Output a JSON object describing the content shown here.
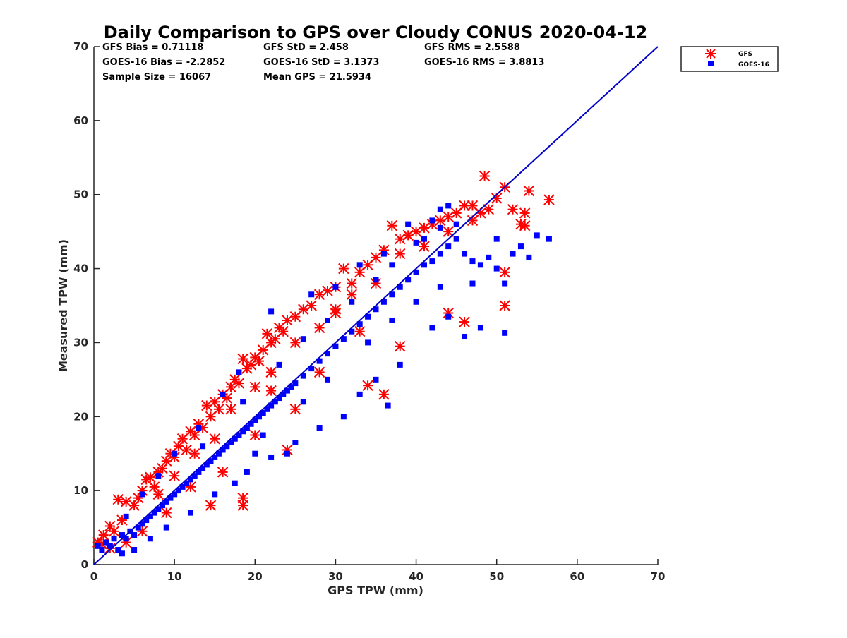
{
  "chart_data": {
    "type": "scatter",
    "title": "Daily Comparison to GPS over Cloudy CONUS 2020-04-12",
    "xlabel": "GPS TPW (mm)",
    "ylabel": "Measured TPW (mm)",
    "xlim": [
      0,
      70
    ],
    "ylim": [
      0,
      70
    ],
    "xticks": [
      0,
      10,
      20,
      30,
      40,
      50,
      60,
      70
    ],
    "yticks": [
      0,
      10,
      20,
      30,
      40,
      50,
      60,
      70
    ],
    "grid": false,
    "legend_position": "outside-top-right",
    "stats": [
      "GFS Bias = 0.71118",
      "GFS StD = 2.458",
      "GFS RMS = 2.5588",
      "GOES-16 Bias = -2.2852",
      "GOES-16 StD = 3.1373",
      "GOES-16 RMS = 3.8813",
      "Sample Size = 16067",
      "Mean GPS = 21.5934"
    ],
    "reference_line": {
      "color": "#0000cc",
      "points": [
        [
          0,
          0
        ],
        [
          70,
          70
        ]
      ]
    },
    "series": [
      {
        "name": "GFS",
        "marker": "asterisk",
        "color": "#ff0000",
        "points": [
          [
            0.5,
            3.0
          ],
          [
            1.2,
            4.0
          ],
          [
            2.0,
            5.2
          ],
          [
            2.5,
            4.5
          ],
          [
            3.0,
            8.8
          ],
          [
            3.5,
            6.0
          ],
          [
            4.0,
            8.5
          ],
          [
            5.0,
            8.0
          ],
          [
            5.5,
            9.0
          ],
          [
            6.0,
            10.0
          ],
          [
            6.5,
            11.5
          ],
          [
            7.0,
            11.8
          ],
          [
            7.5,
            10.5
          ],
          [
            8.0,
            12.5
          ],
          [
            8.5,
            13.0
          ],
          [
            9.0,
            14.0
          ],
          [
            9.5,
            15.0
          ],
          [
            10.0,
            14.5
          ],
          [
            10.5,
            16.0
          ],
          [
            11.0,
            17.0
          ],
          [
            11.5,
            15.5
          ],
          [
            12.0,
            18.0
          ],
          [
            12.5,
            17.5
          ],
          [
            13.0,
            19.0
          ],
          [
            13.5,
            18.5
          ],
          [
            14.0,
            21.5
          ],
          [
            14.5,
            20.0
          ],
          [
            15.0,
            22.0
          ],
          [
            15.5,
            21.0
          ],
          [
            16.0,
            23.0
          ],
          [
            16.5,
            22.5
          ],
          [
            17.0,
            24.0
          ],
          [
            17.5,
            25.0
          ],
          [
            18.0,
            24.5
          ],
          [
            18.5,
            27.8
          ],
          [
            19.0,
            26.5
          ],
          [
            19.5,
            27.0
          ],
          [
            20.0,
            28.0
          ],
          [
            20.5,
            27.5
          ],
          [
            21.0,
            29.0
          ],
          [
            21.5,
            31.2
          ],
          [
            22.0,
            30.0
          ],
          [
            22.5,
            30.5
          ],
          [
            23.0,
            32.0
          ],
          [
            23.5,
            31.5
          ],
          [
            24.0,
            33.0
          ],
          [
            25.0,
            33.5
          ],
          [
            26.0,
            34.5
          ],
          [
            27.0,
            35.0
          ],
          [
            28.0,
            36.5
          ],
          [
            29.0,
            37.0
          ],
          [
            30.0,
            37.5
          ],
          [
            31.0,
            40.0
          ],
          [
            32.0,
            38.0
          ],
          [
            33.0,
            39.5
          ],
          [
            34.0,
            40.5
          ],
          [
            35.0,
            41.5
          ],
          [
            36.0,
            42.5
          ],
          [
            37.0,
            45.8
          ],
          [
            38.0,
            44.0
          ],
          [
            39.0,
            44.5
          ],
          [
            40.0,
            45.0
          ],
          [
            41.0,
            45.5
          ],
          [
            42.0,
            46.0
          ],
          [
            43.0,
            46.5
          ],
          [
            44.0,
            47.0
          ],
          [
            45.0,
            47.5
          ],
          [
            46.0,
            48.5
          ],
          [
            47.0,
            46.5
          ],
          [
            48.0,
            47.5
          ],
          [
            48.5,
            52.5
          ],
          [
            49.0,
            48.0
          ],
          [
            50.0,
            49.5
          ],
          [
            51.0,
            51.0
          ],
          [
            52.0,
            48.0
          ],
          [
            53.0,
            46.0
          ],
          [
            53.5,
            47.5
          ],
          [
            54.0,
            50.5
          ],
          [
            56.5,
            49.3
          ],
          [
            53.5,
            45.8
          ],
          [
            51.0,
            39.5
          ],
          [
            51.0,
            35.0
          ],
          [
            46.0,
            32.8
          ],
          [
            44.0,
            34.0
          ],
          [
            38.0,
            29.5
          ],
          [
            36.0,
            23.0
          ],
          [
            34.0,
            24.2
          ],
          [
            33.0,
            31.5
          ],
          [
            30.0,
            34.0
          ],
          [
            28.0,
            26.0
          ],
          [
            25.0,
            21.0
          ],
          [
            24.0,
            15.5
          ],
          [
            22.0,
            23.5
          ],
          [
            20.0,
            17.5
          ],
          [
            18.5,
            8.0
          ],
          [
            18.5,
            9.0
          ],
          [
            14.5,
            8.0
          ],
          [
            16.0,
            12.5
          ],
          [
            12.0,
            10.5
          ],
          [
            9.0,
            7.0
          ],
          [
            6.0,
            4.5
          ],
          [
            4.0,
            3.0
          ],
          [
            2.0,
            2.2
          ],
          [
            1.0,
            2.8
          ],
          [
            25.0,
            30.0
          ],
          [
            28.0,
            32.0
          ],
          [
            30.0,
            34.5
          ],
          [
            20.0,
            24.0
          ],
          [
            22.0,
            26.0
          ],
          [
            17.0,
            21.0
          ],
          [
            15.0,
            17.0
          ],
          [
            12.5,
            15.0
          ],
          [
            10.0,
            12.0
          ],
          [
            8.0,
            9.5
          ],
          [
            32.0,
            36.5
          ],
          [
            35.0,
            38.0
          ],
          [
            38.0,
            42.0
          ],
          [
            41.0,
            43.0
          ],
          [
            44.0,
            45.0
          ],
          [
            47.0,
            48.5
          ]
        ]
      },
      {
        "name": "GOES-16",
        "marker": "square",
        "color": "#0000ff",
        "points": [
          [
            0.5,
            2.5
          ],
          [
            1.0,
            2.0
          ],
          [
            1.5,
            3.0
          ],
          [
            2.0,
            2.5
          ],
          [
            2.5,
            3.5
          ],
          [
            3.0,
            2.0
          ],
          [
            3.5,
            4.0
          ],
          [
            4.0,
            3.5
          ],
          [
            4.5,
            4.5
          ],
          [
            5.0,
            4.0
          ],
          [
            5.5,
            5.0
          ],
          [
            6.0,
            5.5
          ],
          [
            6.5,
            6.0
          ],
          [
            7.0,
            6.5
          ],
          [
            7.5,
            7.0
          ],
          [
            8.0,
            7.5
          ],
          [
            8.5,
            8.0
          ],
          [
            9.0,
            8.5
          ],
          [
            9.5,
            9.0
          ],
          [
            10.0,
            9.5
          ],
          [
            10.5,
            10.0
          ],
          [
            11.0,
            10.5
          ],
          [
            11.5,
            11.0
          ],
          [
            12.0,
            11.5
          ],
          [
            12.5,
            12.0
          ],
          [
            13.0,
            12.5
          ],
          [
            13.5,
            13.0
          ],
          [
            14.0,
            13.5
          ],
          [
            14.5,
            14.0
          ],
          [
            15.0,
            14.5
          ],
          [
            15.5,
            15.0
          ],
          [
            16.0,
            15.5
          ],
          [
            16.5,
            16.0
          ],
          [
            17.0,
            16.5
          ],
          [
            17.5,
            17.0
          ],
          [
            18.0,
            17.5
          ],
          [
            18.5,
            18.0
          ],
          [
            19.0,
            18.5
          ],
          [
            19.5,
            19.0
          ],
          [
            20.0,
            19.5
          ],
          [
            20.5,
            20.0
          ],
          [
            21.0,
            20.5
          ],
          [
            21.5,
            21.0
          ],
          [
            22.0,
            21.5
          ],
          [
            22.5,
            22.0
          ],
          [
            23.0,
            22.5
          ],
          [
            23.5,
            23.0
          ],
          [
            24.0,
            23.5
          ],
          [
            24.5,
            24.0
          ],
          [
            25.0,
            24.5
          ],
          [
            26.0,
            25.5
          ],
          [
            27.0,
            26.5
          ],
          [
            28.0,
            27.5
          ],
          [
            29.0,
            28.5
          ],
          [
            30.0,
            29.5
          ],
          [
            31.0,
            30.5
          ],
          [
            32.0,
            31.5
          ],
          [
            33.0,
            32.5
          ],
          [
            34.0,
            33.5
          ],
          [
            35.0,
            34.5
          ],
          [
            36.0,
            35.5
          ],
          [
            37.0,
            36.5
          ],
          [
            38.0,
            37.5
          ],
          [
            39.0,
            38.5
          ],
          [
            40.0,
            39.5
          ],
          [
            41.0,
            40.5
          ],
          [
            42.0,
            41.0
          ],
          [
            43.0,
            42.0
          ],
          [
            44.0,
            43.0
          ],
          [
            45.0,
            44.0
          ],
          [
            46.0,
            42.0
          ],
          [
            47.0,
            41.0
          ],
          [
            48.0,
            40.5
          ],
          [
            49.0,
            41.5
          ],
          [
            50.0,
            40.0
          ],
          [
            51.0,
            38.0
          ],
          [
            52.0,
            42.0
          ],
          [
            53.0,
            43.0
          ],
          [
            54.0,
            41.5
          ],
          [
            55.0,
            44.5
          ],
          [
            56.5,
            44.0
          ],
          [
            42.0,
            46.5
          ],
          [
            43.0,
            48.0
          ],
          [
            44.0,
            48.5
          ],
          [
            41.0,
            44.0
          ],
          [
            39.0,
            46.0
          ],
          [
            22.0,
            34.2
          ],
          [
            27.0,
            36.5
          ],
          [
            30.0,
            37.5
          ],
          [
            33.0,
            40.5
          ],
          [
            36.0,
            42.0
          ],
          [
            18.0,
            26.0
          ],
          [
            16.0,
            23.0
          ],
          [
            13.0,
            18.5
          ],
          [
            10.0,
            15.0
          ],
          [
            8.0,
            12.0
          ],
          [
            6.0,
            9.5
          ],
          [
            4.0,
            6.5
          ],
          [
            46.0,
            30.8
          ],
          [
            48.0,
            32.0
          ],
          [
            51.0,
            31.3
          ],
          [
            44.0,
            33.5
          ],
          [
            42.0,
            32.0
          ],
          [
            38.0,
            27.0
          ],
          [
            36.5,
            21.5
          ],
          [
            35.0,
            25.0
          ],
          [
            33.0,
            23.0
          ],
          [
            31.0,
            20.0
          ],
          [
            28.0,
            18.5
          ],
          [
            25.0,
            16.5
          ],
          [
            22.0,
            14.5
          ],
          [
            24.0,
            15.0
          ],
          [
            19.0,
            12.5
          ],
          [
            17.5,
            11.0
          ],
          [
            15.0,
            9.5
          ],
          [
            12.0,
            7.0
          ],
          [
            9.0,
            5.0
          ],
          [
            7.0,
            3.5
          ],
          [
            5.0,
            2.0
          ],
          [
            3.5,
            1.5
          ],
          [
            13.5,
            16.0
          ],
          [
            18.5,
            22.0
          ],
          [
            23.0,
            27.0
          ],
          [
            26.0,
            30.5
          ],
          [
            29.0,
            33.0
          ],
          [
            32.0,
            35.5
          ],
          [
            35.0,
            38.5
          ],
          [
            37.0,
            40.5
          ],
          [
            40.0,
            43.5
          ],
          [
            43.0,
            45.5
          ],
          [
            45.0,
            46.0
          ],
          [
            20.0,
            15.0
          ],
          [
            21.0,
            17.5
          ],
          [
            26.0,
            22.0
          ],
          [
            29.0,
            25.0
          ],
          [
            34.0,
            30.0
          ],
          [
            37.0,
            33.0
          ],
          [
            40.0,
            35.5
          ],
          [
            43.0,
            37.5
          ],
          [
            47.0,
            38.0
          ],
          [
            50.0,
            44.0
          ]
        ]
      }
    ]
  }
}
